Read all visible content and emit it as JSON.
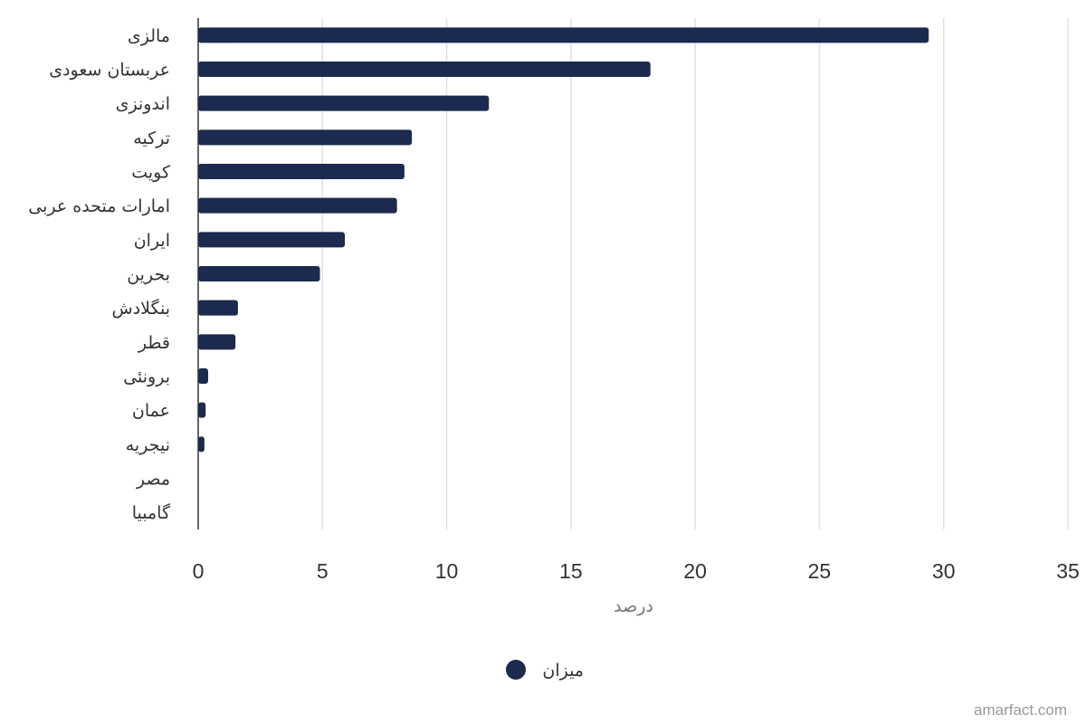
{
  "chart_data": {
    "type": "bar",
    "orientation": "horizontal",
    "categories": [
      "مالزی",
      "عربستان سعودی",
      "اندونزی",
      "ترکیه",
      "کویت",
      "امارات متحده عربی",
      "ایران",
      "بحرین",
      "بنگلادش",
      "قطر",
      "برونئی",
      "عمان",
      "نیجریه",
      "مصر",
      "گامبیا"
    ],
    "series": [
      {
        "name": "میزان",
        "values": [
          29.4,
          18.2,
          11.7,
          8.6,
          8.3,
          8.0,
          5.9,
          4.9,
          1.6,
          1.5,
          0.4,
          0.3,
          0.25,
          0,
          0
        ]
      }
    ],
    "xlabel": "درصد",
    "ylabel": "",
    "xlim": [
      0,
      35
    ],
    "xticks": [
      0,
      5,
      10,
      15,
      20,
      25,
      30,
      35
    ],
    "xtick_labels": [
      "0",
      "5",
      "10",
      "15",
      "20",
      "25",
      "30",
      "35"
    ],
    "grid": true,
    "legend_position": "bottom-center",
    "bar_color": "#1b2a4e",
    "gridline_color": "#e1e1e1"
  },
  "credit": "amarfact.com"
}
